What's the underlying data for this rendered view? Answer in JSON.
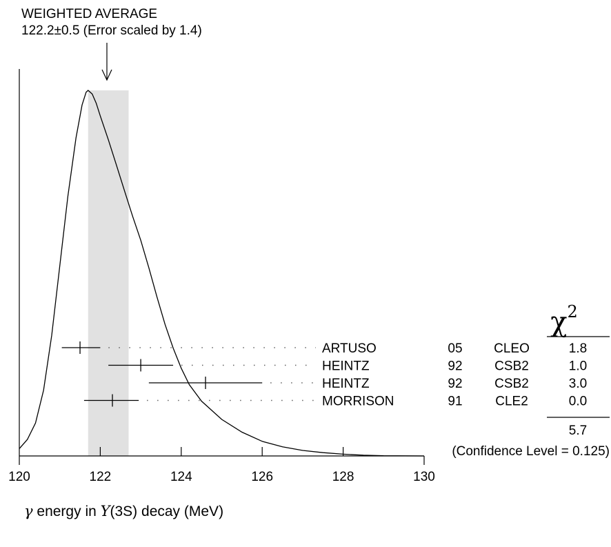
{
  "chart_data": {
    "type": "ideogram",
    "title": "WEIGHTED AVERAGE",
    "subtitle": "122.2±0.5 (Error scaled by 1.4)",
    "weighted_average": {
      "value": 122.2,
      "error": 0.5,
      "scale_factor": 1.4
    },
    "band": [
      121.7,
      122.7
    ],
    "x_axis": {
      "label_parts": {
        "gamma": "γ",
        "mid": " energy in ",
        "upsilon": "Υ",
        "state": "(3S)",
        "tail": " decay (MeV)"
      },
      "range": [
        120,
        130
      ],
      "ticks": [
        120,
        122,
        124,
        126,
        128,
        130
      ],
      "tick_labels": [
        "120",
        "122",
        "124",
        "126",
        "128",
        "130"
      ]
    },
    "measurements": [
      {
        "author": "ARTUSO",
        "year": "05",
        "experiment": "CLEO",
        "value": 121.5,
        "lo": 121.05,
        "hi": 122.0,
        "chi2": "1.8"
      },
      {
        "author": "HEINTZ",
        "year": "92",
        "experiment": "CSB2",
        "value": 123.0,
        "lo": 122.2,
        "hi": 123.8,
        "chi2": "1.0"
      },
      {
        "author": "HEINTZ",
        "year": "92",
        "experiment": "CSB2",
        "value": 124.6,
        "lo": 123.2,
        "hi": 126.0,
        "chi2": "3.0"
      },
      {
        "author": "MORRISON",
        "year": "91",
        "experiment": "CLE2",
        "value": 122.3,
        "lo": 121.6,
        "hi": 122.95,
        "chi2": "0.0"
      }
    ],
    "chi2_header": {
      "symbol": "χ",
      "power": "2"
    },
    "chi2_total": "5.7",
    "confidence_level": "(Confidence Level = 0.125)",
    "curve": [
      [
        120.0,
        0.02
      ],
      [
        120.2,
        0.045
      ],
      [
        120.4,
        0.09
      ],
      [
        120.6,
        0.18
      ],
      [
        120.8,
        0.33
      ],
      [
        121.0,
        0.52
      ],
      [
        121.2,
        0.71
      ],
      [
        121.4,
        0.87
      ],
      [
        121.55,
        0.96
      ],
      [
        121.65,
        0.995
      ],
      [
        121.7,
        1.0
      ],
      [
        121.8,
        0.99
      ],
      [
        121.9,
        0.965
      ],
      [
        122.0,
        0.93
      ],
      [
        122.2,
        0.865
      ],
      [
        122.4,
        0.795
      ],
      [
        122.6,
        0.725
      ],
      [
        122.8,
        0.655
      ],
      [
        123.0,
        0.59
      ],
      [
        123.2,
        0.515
      ],
      [
        123.4,
        0.435
      ],
      [
        123.6,
        0.36
      ],
      [
        123.8,
        0.295
      ],
      [
        124.0,
        0.24
      ],
      [
        124.2,
        0.195
      ],
      [
        124.5,
        0.15
      ],
      [
        125.0,
        0.1
      ],
      [
        125.5,
        0.065
      ],
      [
        126.0,
        0.04
      ],
      [
        126.5,
        0.025
      ],
      [
        127.0,
        0.015
      ],
      [
        127.5,
        0.009
      ],
      [
        128.0,
        0.005
      ],
      [
        128.5,
        0.002
      ],
      [
        129.0,
        0.0005
      ],
      [
        130.0,
        0.0
      ]
    ]
  }
}
